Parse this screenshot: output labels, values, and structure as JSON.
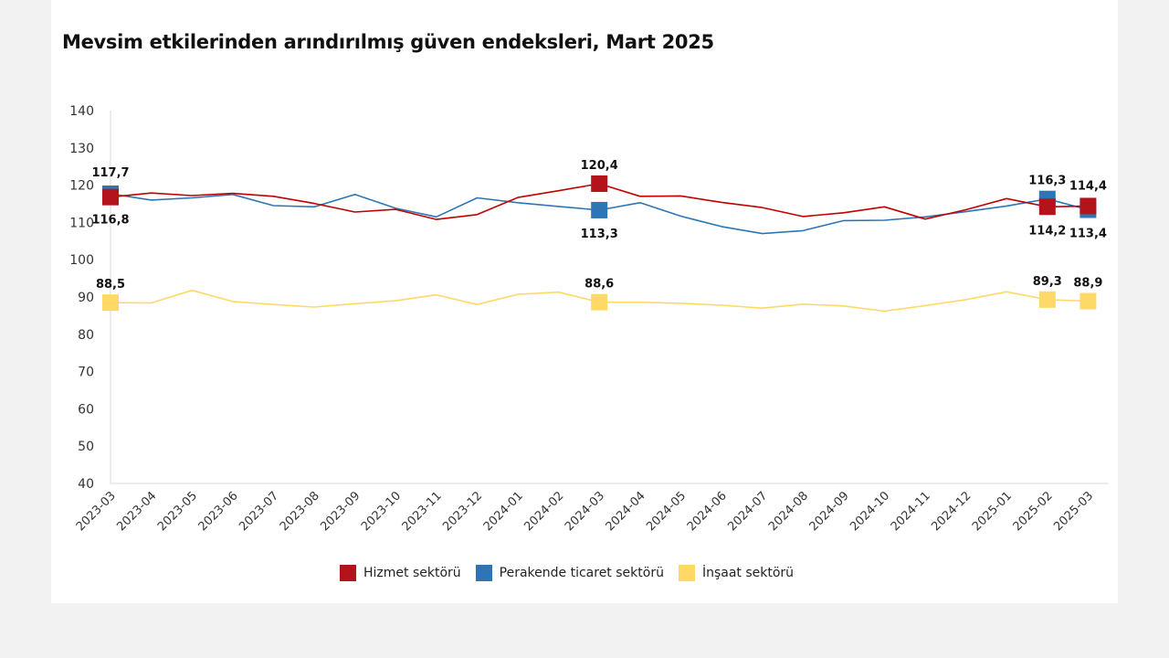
{
  "page": {
    "title": "Mevsim etkilerinden arındırılmış güven endeksleri, Mart 2025"
  },
  "chart_data": {
    "type": "line",
    "title": "Mevsim etkilerinden arındırılmış güven endeksleri, Mart 2025",
    "xlabel": "",
    "ylabel": "",
    "ylim": [
      40,
      140
    ],
    "yticks": [
      "40",
      "50",
      "60",
      "70",
      "80",
      "90",
      "100",
      "110",
      "120",
      "130",
      "140"
    ],
    "grid": false,
    "legend_position": "bottom",
    "categories": [
      "2023-03",
      "2023-04",
      "2023-05",
      "2023-06",
      "2023-07",
      "2023-08",
      "2023-09",
      "2023-10",
      "2023-11",
      "2023-12",
      "2024-01",
      "2024-02",
      "2024-03",
      "2024-04",
      "2024-05",
      "2024-06",
      "2024-07",
      "2024-08",
      "2024-09",
      "2024-10",
      "2024-11",
      "2024-12",
      "2025-01",
      "2025-02",
      "2025-03"
    ],
    "series": [
      {
        "name": "Hizmet sektörü",
        "color": "#c00000",
        "marker_color": "#b3141b",
        "values": [
          116.8,
          117.9,
          117.2,
          117.8,
          117.0,
          115.1,
          112.8,
          113.5,
          110.8,
          112.1,
          116.7,
          118.5,
          120.4,
          117.0,
          117.1,
          115.4,
          114.0,
          111.6,
          112.6,
          114.2,
          110.9,
          113.4,
          116.4,
          114.2,
          114.4
        ],
        "labels": [
          {
            "index": 0,
            "text": "116,8",
            "pos": "below"
          },
          {
            "index": 12,
            "text": "120,4",
            "pos": "above"
          },
          {
            "index": 23,
            "text": "114,2",
            "pos": "below"
          },
          {
            "index": 24,
            "text": "114,4",
            "pos": "above"
          }
        ]
      },
      {
        "name": "Perakende ticaret sektörü",
        "color": "#2e75b6",
        "marker_color": "#2e75b6",
        "values": [
          117.7,
          116.0,
          116.6,
          117.5,
          114.5,
          114.2,
          117.5,
          113.8,
          111.5,
          116.6,
          115.3,
          114.3,
          113.3,
          115.3,
          111.7,
          108.9,
          107.0,
          107.8,
          110.5,
          110.6,
          111.5,
          112.9,
          114.4,
          116.3,
          113.4
        ],
        "labels": [
          {
            "index": 0,
            "text": "117,7",
            "pos": "above"
          },
          {
            "index": 12,
            "text": "113,3",
            "pos": "below"
          },
          {
            "index": 23,
            "text": "116,3",
            "pos": "above"
          },
          {
            "index": 24,
            "text": "113,4",
            "pos": "below"
          }
        ]
      },
      {
        "name": "İnşaat sektörü",
        "color": "#ffd966",
        "marker_color": "#ffd966",
        "values": [
          88.5,
          88.4,
          91.8,
          88.8,
          88.0,
          87.3,
          88.2,
          89.0,
          90.6,
          88.0,
          90.7,
          91.3,
          88.6,
          88.6,
          88.3,
          87.8,
          87.0,
          88.1,
          87.6,
          86.2,
          87.7,
          89.3,
          91.4,
          89.3,
          88.9
        ],
        "labels": [
          {
            "index": 0,
            "text": "88,5",
            "pos": "above"
          },
          {
            "index": 12,
            "text": "88,6",
            "pos": "above"
          },
          {
            "index": 23,
            "text": "89,3",
            "pos": "above"
          },
          {
            "index": 24,
            "text": "88,9",
            "pos": "above"
          }
        ]
      }
    ]
  }
}
